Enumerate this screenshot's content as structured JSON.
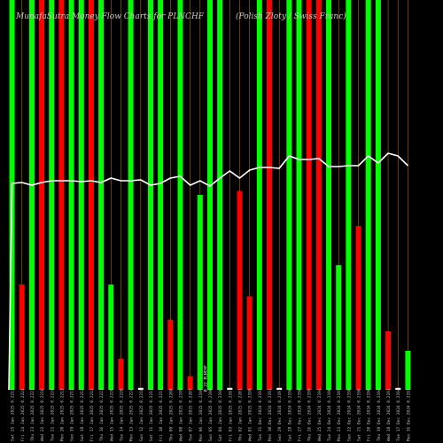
{
  "header": {
    "title": "MunafaSutra Money Flow Charts for PLNCHF",
    "subtitle": "(Polish Zloty / Swiss Franc)"
  },
  "colors": {
    "background": "#000000",
    "up": "#00ff00",
    "down": "#ff0000",
    "neutral": "#ffffff",
    "gridline": "#b26a00",
    "price_line": "#ffffff"
  },
  "chart_data": {
    "type": "bar",
    "title": "MunafaSutra Money Flow Charts for PLNCHF",
    "subtitle": "(Polish Zloty / Swiss Franc)",
    "ylim": [
      0,
      100
    ],
    "bars": [
      {
        "label": "Sat 25 Jan 2025 0.2213",
        "dir": "up",
        "value": 100
      },
      {
        "label": "Fri 24 Jan 2025 0.2224",
        "dir": "down",
        "value": 27
      },
      {
        "label": "Thu 23 Jan 2025 0.2227",
        "dir": "up",
        "value": 100
      },
      {
        "label": "Wed 22 Jan 2025 0.2216",
        "dir": "down",
        "value": 100
      },
      {
        "label": "Tue 21 Jan 2025 0.2224",
        "dir": "up",
        "value": 100
      },
      {
        "label": "Mon 20 Jan 2025 0.2213",
        "dir": "down",
        "value": 100
      },
      {
        "label": "Sun 19 Jan 2025 0.2213",
        "dir": "up",
        "value": 100
      },
      {
        "label": "Sat 18 Jan 2025 0.2212",
        "dir": "up",
        "value": 100
      },
      {
        "label": "Fri 17 Jan 2025 0.2212",
        "dir": "down",
        "value": 100
      },
      {
        "label": "Thu 16 Jan 2025 0.2221",
        "dir": "up",
        "value": 100
      },
      {
        "label": "Wed 15 Jan 2025 0.2220",
        "dir": "up",
        "value": 27
      },
      {
        "label": "Tue 14 Jan 2025 0.2220",
        "dir": "down",
        "value": 8
      },
      {
        "label": "Mon 13 Jan 2025 0.2224",
        "dir": "up",
        "value": 100
      },
      {
        "label": "Sun 12 Jan 2025 0.2210",
        "dir": "neutral",
        "value": 0.5
      },
      {
        "label": "Sat 11 Jan 2025 0.2211",
        "dir": "up",
        "value": 100
      },
      {
        "label": "Fri 10 Jan 2025 0.2211",
        "dir": "up",
        "value": 100
      },
      {
        "label": "Thu 09 Jan 2025 0.2208",
        "dir": "down",
        "value": 18
      },
      {
        "label": "Wed 08 Jan 2025 0.2199",
        "dir": "up",
        "value": 100
      },
      {
        "label": "Tue 07 Jan 2025 0.2207",
        "dir": "down",
        "value": 3.5
      },
      {
        "label": "Mon 06 Jan 2025 0.2199",
        "dir": "up",
        "value": 50
      },
      {
        "label": "Sun 05 Jan 2025 0.2190",
        "dir": "up",
        "value": 100
      },
      {
        "label": "Sat 04 Jan 2025 0.2196",
        "dir": "up",
        "value": 100
      },
      {
        "label": "Fri 03 Jan 2025 0.2191",
        "dir": "neutral",
        "value": 0.5
      },
      {
        "label": "Thu 02 Jan 2025 0.2201",
        "dir": "down",
        "value": 51
      },
      {
        "label": "Wed 01 Jan 2025 0.2199",
        "dir": "down",
        "value": 24
      },
      {
        "label": "Tue 31 Dec 2024 0.2193",
        "dir": "up",
        "value": 100
      },
      {
        "label": "Mon 30 Dec 2024 0.2191",
        "dir": "down",
        "value": 100
      },
      {
        "label": "Sun 29 Dec 2024 0.2197",
        "dir": "neutral",
        "value": 0.5
      },
      {
        "label": "Sat 28 Dec 2024 0.2196",
        "dir": "up",
        "value": 100
      },
      {
        "label": "Fri 27 Dec 2024 0.2196",
        "dir": "up",
        "value": 100
      },
      {
        "label": "Thu 26 Dec 2024 0.2199",
        "dir": "down",
        "value": 100
      },
      {
        "label": "Wed 25 Dec 2024 0.2194",
        "dir": "down",
        "value": 100
      },
      {
        "label": "Tue 24 Dec 2024 0.2196",
        "dir": "up",
        "value": 100
      },
      {
        "label": "Mon 23 Dec 2024 0.2195",
        "dir": "up",
        "value": 32
      },
      {
        "label": "Sun 22 Dec 2024 0.2196",
        "dir": "up",
        "value": 100
      },
      {
        "label": "Sat 21 Dec 2024 0.2196",
        "dir": "down",
        "value": 42
      },
      {
        "label": "Fri 20 Dec 2024 0.2196",
        "dir": "up",
        "value": 100
      },
      {
        "label": "Thu 19 Dec 2024 0.2194",
        "dir": "up",
        "value": 100
      },
      {
        "label": "Wed 18 Dec 2024 0.2191",
        "dir": "down",
        "value": 15
      },
      {
        "label": "Tue 17 Dec 2024 0.2194",
        "dir": "neutral",
        "value": 0.5
      },
      {
        "label": "Mon 16 Dec 2024 0.2193",
        "dir": "up",
        "value": 10
      }
    ],
    "price_line": [
      0.2213,
      0.2224,
      0.2227,
      0.2216,
      0.2224,
      0.2213,
      0.2213,
      0.2212,
      0.2212,
      0.2221,
      0.222,
      0.222,
      0.2224,
      0.221,
      0.2211,
      0.2211,
      0.2208,
      0.2199,
      0.2207,
      0.2199,
      0.219,
      0.2196,
      0.2191,
      0.2201,
      0.2199,
      0.2193,
      0.2191,
      0.2197,
      0.2196,
      0.2196,
      0.2199,
      0.2194,
      0.2196,
      0.2195,
      0.2196,
      0.2196,
      0.2196,
      0.2194,
      0.2191,
      0.2194,
      0.2193
    ],
    "price_range": [
      0.215,
      0.225
    ],
    "mid_annotation": "0.22 PLNCHF"
  }
}
